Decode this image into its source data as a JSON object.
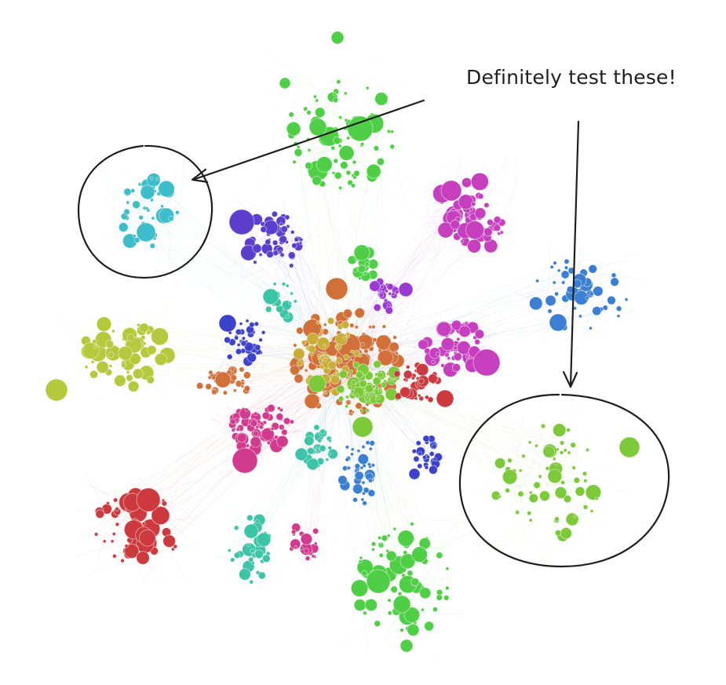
{
  "annotation": {
    "text": "Definitely test these!"
  },
  "colors": {
    "green": "#4fcf45",
    "cyan": "#3dbdc9",
    "magenta": "#c63fbe",
    "blue": "#3a7fd2",
    "purple": "#5b3fcc",
    "olive": "#b4c93c",
    "red": "#cc3a3e",
    "orange": "#d2703a",
    "lime": "#7cc93a",
    "teal": "#3cc4a6",
    "pink": "#d23a8e",
    "indigo": "#3d42cc",
    "gold": "#c8ad36",
    "violet": "#9a3ad2",
    "ink": "#1e1e1e"
  },
  "clusters": [
    {
      "name": "cluster-top-green",
      "color": "green"
    },
    {
      "name": "cluster-left-cyan",
      "color": "cyan",
      "highlighted": true
    },
    {
      "name": "cluster-right-magenta",
      "color": "magenta"
    },
    {
      "name": "cluster-right-blue",
      "color": "blue"
    },
    {
      "name": "cluster-purple",
      "color": "purple"
    },
    {
      "name": "cluster-left-olive",
      "color": "olive"
    },
    {
      "name": "cluster-bottom-left-red",
      "color": "red"
    },
    {
      "name": "cluster-bottom-right-lime",
      "color": "lime",
      "highlighted": true
    },
    {
      "name": "cluster-bottom-green",
      "color": "green"
    },
    {
      "name": "cluster-bottom-teal",
      "color": "teal"
    },
    {
      "name": "cluster-bottom-pink",
      "color": "pink"
    },
    {
      "name": "cluster-core",
      "color": "orange"
    }
  ]
}
